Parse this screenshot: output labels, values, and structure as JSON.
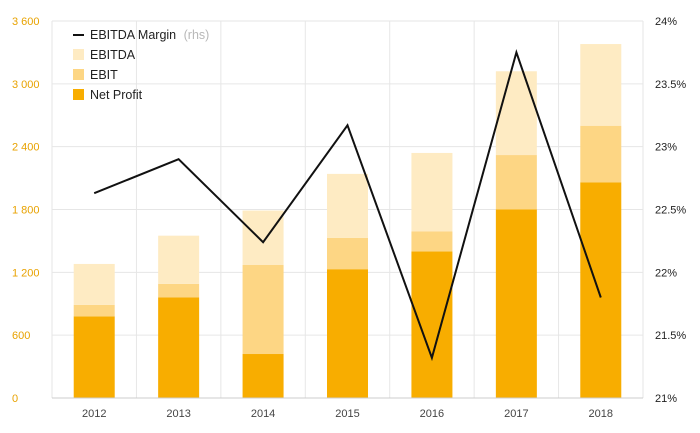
{
  "colors": {
    "ebitda": "#feebc3",
    "ebit": "#fdd684",
    "net_profit": "#f8ad00",
    "margin_line": "#111111",
    "left_axis_text": "#e8a200",
    "grid": "#e6e6e6"
  },
  "chart_data": {
    "type": "bar",
    "stacked": true,
    "categories": [
      "2012",
      "2013",
      "2014",
      "2015",
      "2016",
      "2017",
      "2018"
    ],
    "series": [
      {
        "name": "Net Profit",
        "axis": "left",
        "values": [
          780,
          960,
          420,
          1230,
          1400,
          1800,
          2060
        ]
      },
      {
        "name": "EBIT",
        "axis": "left",
        "values": [
          110,
          130,
          850,
          300,
          190,
          520,
          540
        ]
      },
      {
        "name": "EBITDA",
        "axis": "left",
        "values": [
          390,
          460,
          520,
          610,
          750,
          800,
          780
        ]
      },
      {
        "name": "EBITDA Margin",
        "type": "line",
        "axis": "right",
        "values": [
          22.63,
          22.9,
          22.24,
          23.17,
          21.32,
          23.75,
          21.8
        ]
      }
    ],
    "y_left": {
      "min": 0,
      "max": 3600,
      "ticks": [
        "0",
        "600",
        "1 200",
        "1 800",
        "2 400",
        "3 000",
        "3 600"
      ]
    },
    "y_right": {
      "min": 21,
      "max": 24,
      "ticks": [
        "21%",
        "21.5%",
        "22%",
        "22.5%",
        "23%",
        "23.5%",
        "24%"
      ]
    },
    "legend": {
      "position": "top-left",
      "items": [
        {
          "label": "EBITDA Margin",
          "suffix": "(rhs)",
          "kind": "line"
        },
        {
          "label": "EBITDA",
          "kind": "box"
        },
        {
          "label": "EBIT",
          "kind": "box"
        },
        {
          "label": "Net Profit",
          "kind": "box"
        }
      ]
    },
    "grid": true
  }
}
